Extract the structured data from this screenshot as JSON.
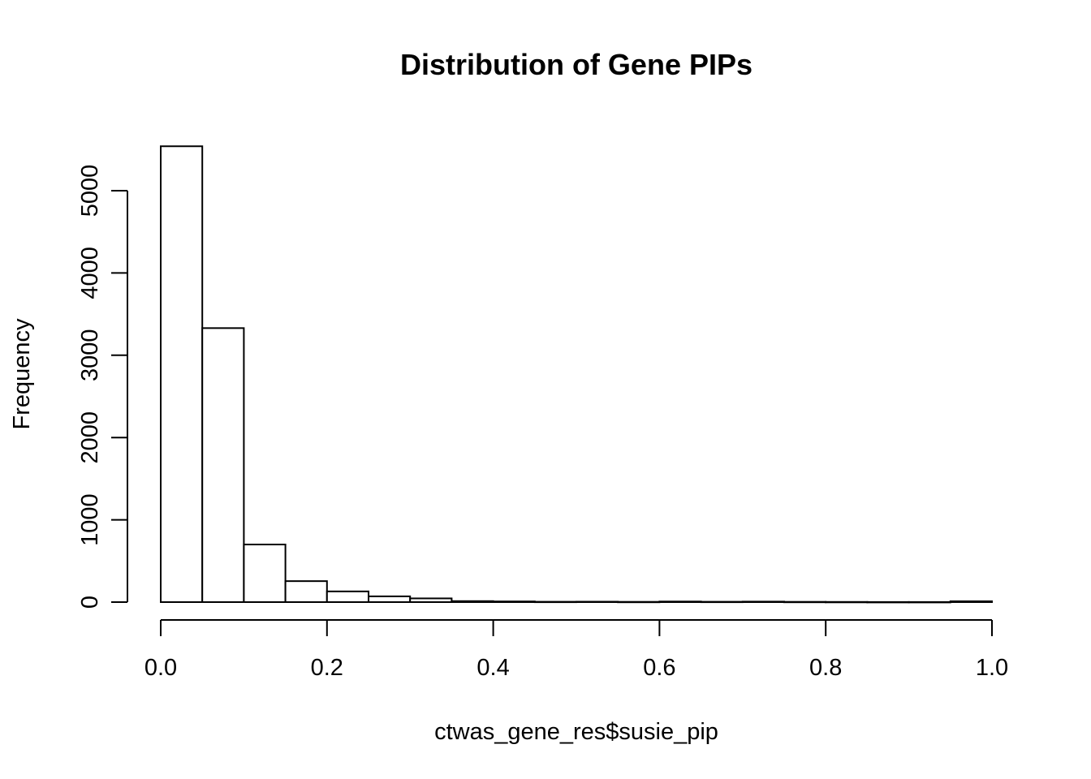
{
  "chart_data": {
    "type": "bar",
    "title": "Distribution of Gene PIPs",
    "xlabel": "ctwas_gene_res$susie_pip",
    "ylabel": "Frequency",
    "xlim": [
      0,
      1
    ],
    "ylim": [
      0,
      5500
    ],
    "x_ticks": [
      "0.0",
      "0.2",
      "0.4",
      "0.6",
      "0.8",
      "1.0"
    ],
    "x_tick_values": [
      0,
      0.2,
      0.4,
      0.6,
      0.8,
      1.0
    ],
    "y_ticks": [
      "0",
      "1000",
      "2000",
      "3000",
      "4000",
      "5000"
    ],
    "y_tick_values": [
      0,
      1000,
      2000,
      3000,
      4000,
      5000
    ],
    "bin_edges": [
      0.0,
      0.05,
      0.1,
      0.15,
      0.2,
      0.25,
      0.3,
      0.35,
      0.4,
      0.45,
      0.5,
      0.55,
      0.6,
      0.65,
      0.7,
      0.75,
      0.8,
      0.85,
      0.9,
      0.95,
      1.0
    ],
    "values": [
      5540,
      3330,
      700,
      255,
      130,
      70,
      45,
      12,
      8,
      4,
      5,
      3,
      7,
      4,
      6,
      3,
      2,
      1,
      1,
      10
    ],
    "grid": false,
    "legend": "none",
    "bar_fill": "#ffffff",
    "bar_stroke": "#000000"
  }
}
